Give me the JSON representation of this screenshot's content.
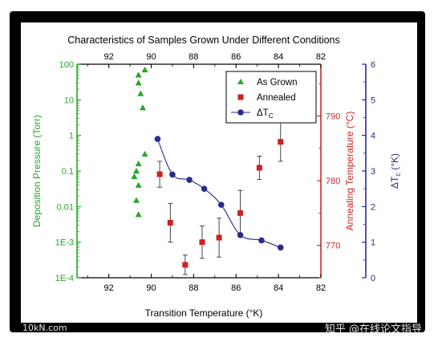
{
  "chart_data": {
    "type": "scatter",
    "title": "Characteristics of Samples Grown Under Different Conditions",
    "xlabel": "Transition Temperature (°K)",
    "xlim": [
      93.5,
      82
    ],
    "x_ticks": [
      92,
      90,
      88,
      86,
      84,
      82
    ],
    "x_tick_labels": [
      "92",
      "90",
      "88",
      "86",
      "84",
      "82"
    ],
    "top_ticks": [
      92,
      90,
      88,
      86,
      84,
      82
    ],
    "top_tick_labels": [
      "92",
      "90",
      "88",
      "86",
      "84",
      "82"
    ],
    "left_axis": {
      "label": "Deposition Pressure (Torr)",
      "color": "#2aa52a",
      "scale": "log",
      "lim": [
        0.0001,
        100
      ],
      "ticks": [
        0.0001,
        0.001,
        0.01,
        0.1,
        1,
        10,
        100
      ],
      "tick_labels": [
        "1E-4",
        "1E-3",
        "0.01",
        "0.1",
        "1",
        "10",
        "100"
      ]
    },
    "right_axis_1": {
      "label": "Annealing Temperature (°C)",
      "color": "#c82828",
      "lim": [
        765,
        798
      ],
      "ticks": [
        770,
        780,
        790
      ],
      "tick_labels": [
        "770",
        "780",
        "790"
      ]
    },
    "right_axis_2": {
      "label_main": "ΔT",
      "label_sub": "c",
      "label_unit": " (°K)",
      "color": "#2a2a8c",
      "lim": [
        0,
        6
      ],
      "ticks": [
        0,
        1,
        2,
        3,
        4,
        5,
        6
      ],
      "tick_labels": [
        "0",
        "1",
        "2",
        "3",
        "4",
        "5",
        "6"
      ]
    },
    "legend": {
      "position": "top-right",
      "entries": [
        {
          "label": "As Grown",
          "marker": "triangle",
          "color": "#2aa52a"
        },
        {
          "label": "Annealed",
          "marker": "square",
          "color": "#d02020"
        },
        {
          "label_main": "ΔT",
          "label_sub": "C",
          "marker": "circle-line",
          "color": "#2a2a8c"
        }
      ]
    },
    "series": [
      {
        "name": "As Grown",
        "axis": "left",
        "x": [
          90.6,
          90.3,
          90.6,
          90.5,
          90.4,
          90.3,
          90.6,
          90.7,
          90.8,
          90.6,
          90.7,
          90.6
        ],
        "y": [
          50,
          70,
          30,
          15,
          6,
          0.3,
          0.16,
          0.1,
          0.07,
          0.04,
          0.015,
          0.006
        ]
      },
      {
        "name": "Annealed",
        "axis": "right_1",
        "x": [
          89.6,
          89.1,
          88.4,
          87.6,
          86.8,
          85.8,
          84.9,
          83.9
        ],
        "y": [
          781,
          773.5,
          767,
          770.5,
          771.2,
          775,
          782,
          786
        ],
        "err": [
          2,
          3,
          1.5,
          2.5,
          3,
          3.5,
          1.8,
          3
        ]
      },
      {
        "name": "ΔTc",
        "axis": "right_2",
        "x": [
          89.7,
          89.0,
          88.2,
          87.5,
          86.7,
          85.8,
          84.8,
          83.9
        ],
        "y": [
          3.9,
          2.9,
          2.75,
          2.5,
          2.05,
          1.2,
          1.05,
          0.85
        ]
      }
    ]
  },
  "watermarks": {
    "left": "10kN.com",
    "right": "知乎 @在线论文指导"
  }
}
